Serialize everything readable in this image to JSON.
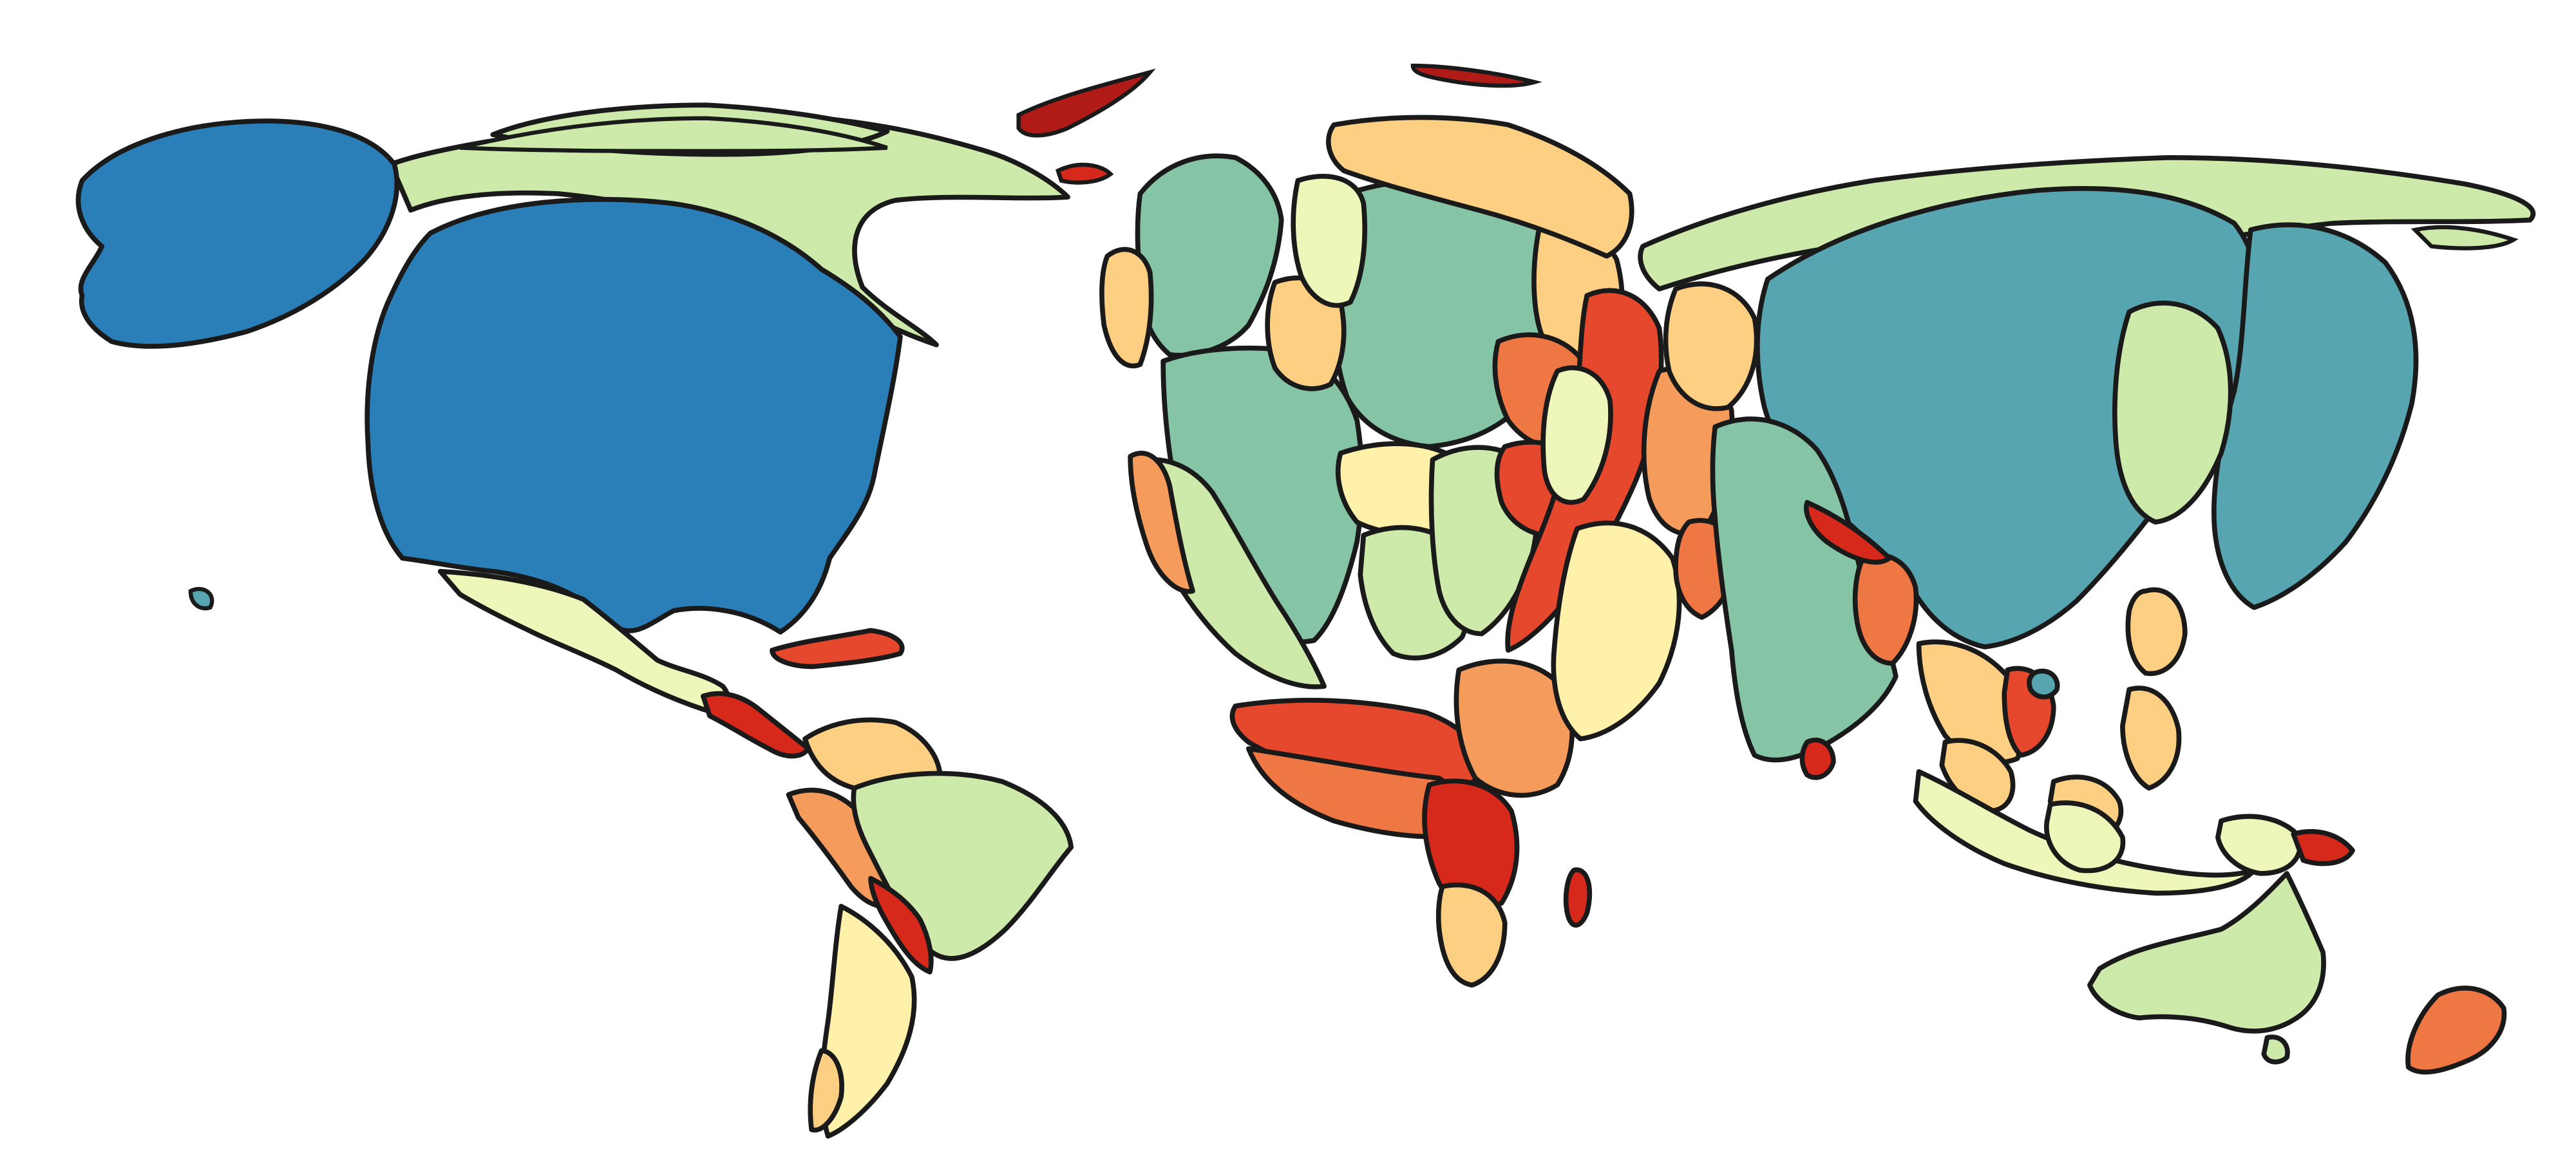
{
  "map": {
    "type": "cartogram",
    "palette": {
      "blue": "#2b7fb8",
      "teal_blue": "#58a5b2",
      "teal": "#86c4a6",
      "light_green": "#cdeaaa",
      "pale_yellow_green": "#eef7b9",
      "pale_yellow": "#fff0aa",
      "light_orange": "#fdcf82",
      "orange": "#f59c5c",
      "deep_orange": "#ef7743",
      "red_orange": "#e5482d",
      "red": "#d7281c",
      "dark_red": "#b01b18"
    },
    "stroke_color": "#1a1a1a",
    "background": "#ffffff"
  }
}
